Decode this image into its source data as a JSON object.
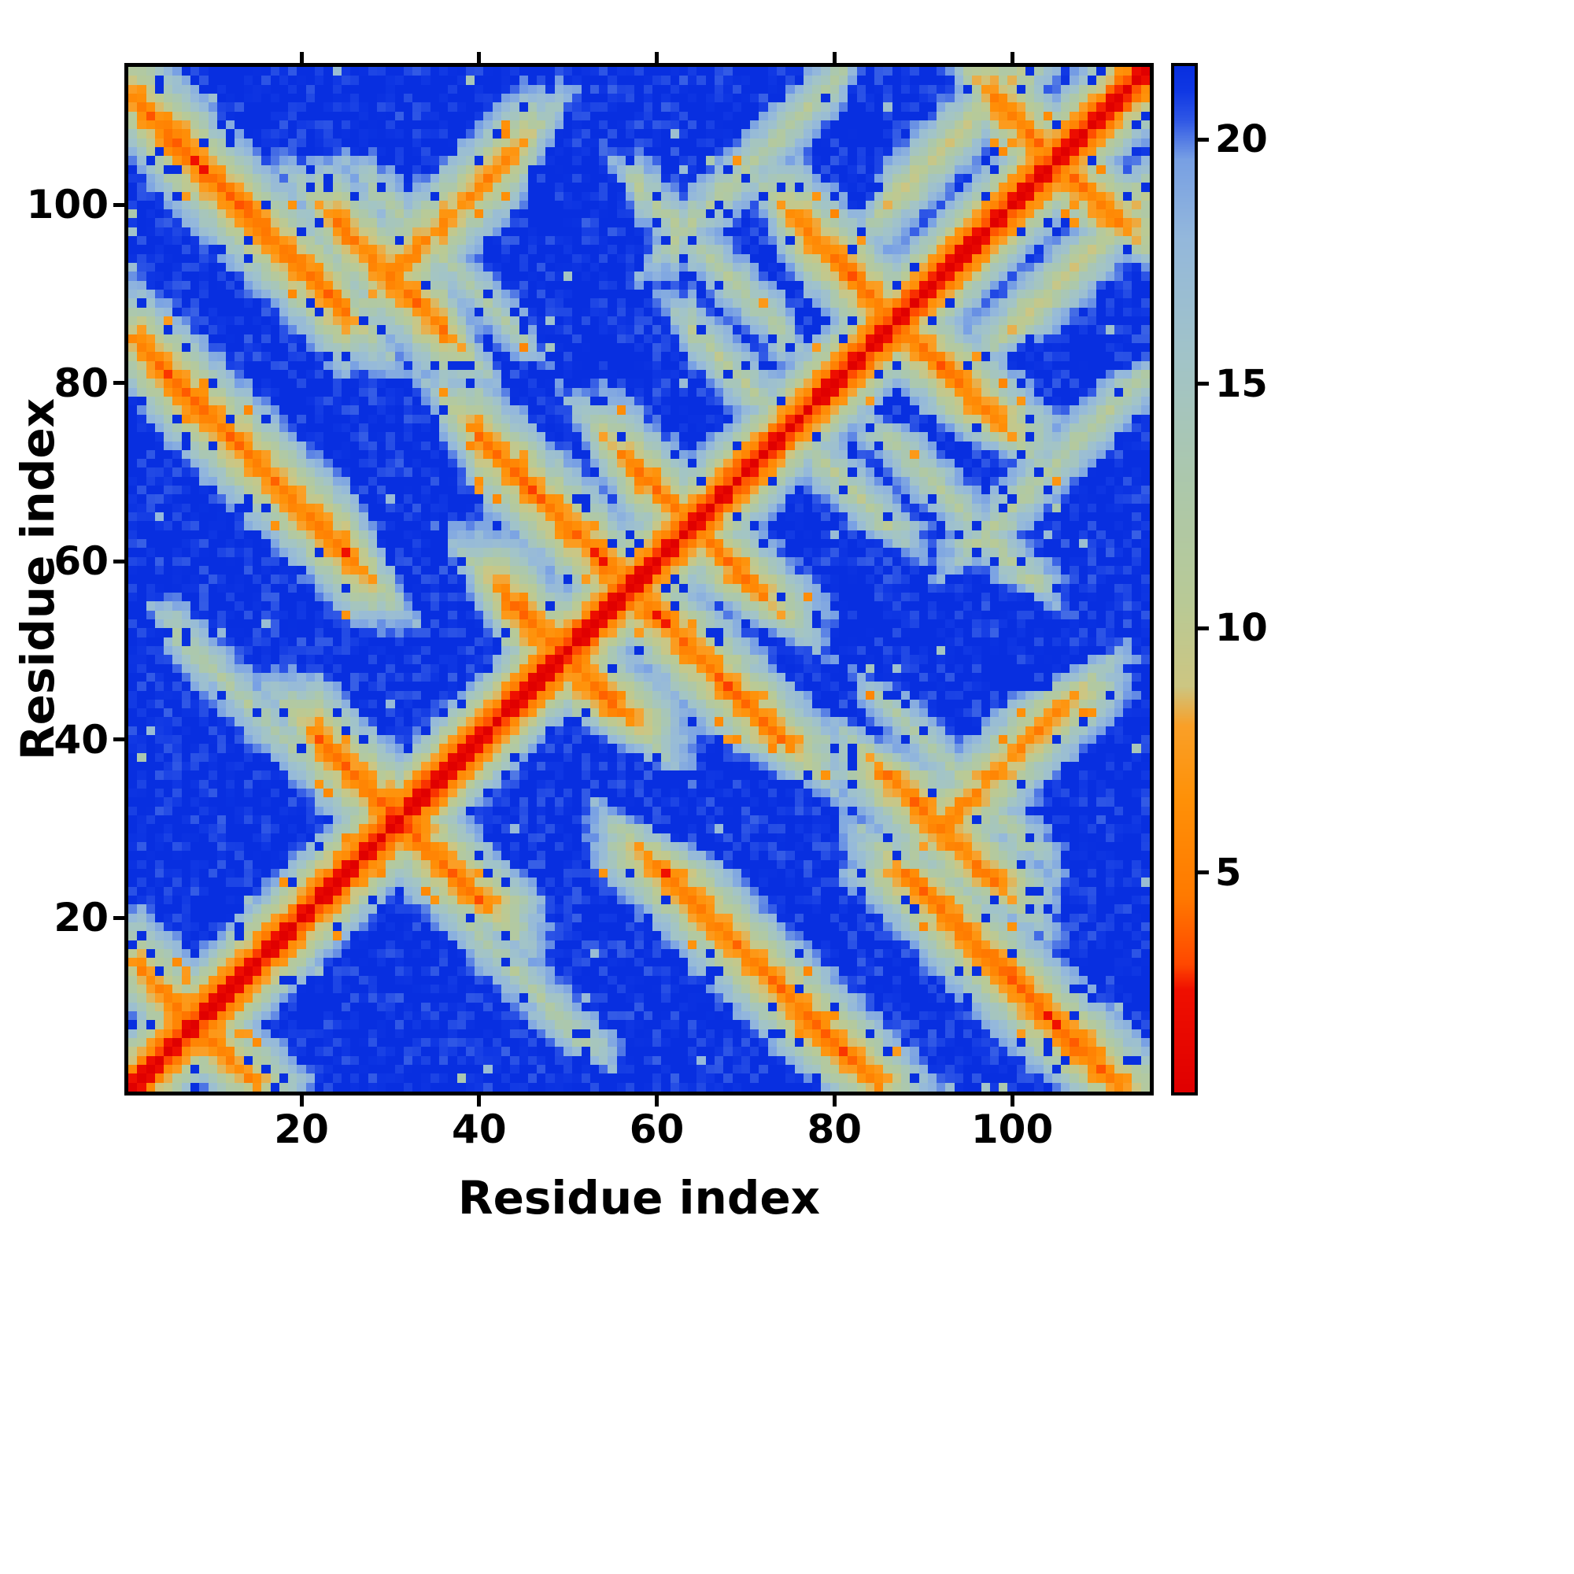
{
  "figure": {
    "background": "#ffffff"
  },
  "chart_data": {
    "type": "heatmap",
    "title": "",
    "xlabel": "Residue index",
    "ylabel": "Residue index",
    "n_residues": 115,
    "x_range": [
      1,
      115
    ],
    "y_range": [
      1,
      115
    ],
    "x_ticks": [
      20,
      40,
      60,
      80,
      100
    ],
    "y_ticks": [
      20,
      40,
      60,
      80,
      100
    ],
    "colorbar": {
      "ticks": [
        5,
        10,
        15,
        20
      ],
      "value_min": 0.5,
      "value_max": 21.5
    },
    "colormap_stops": [
      [
        0.5,
        "#e00000"
      ],
      [
        2.6,
        "#f01000"
      ],
      [
        3.1,
        "#ff4800"
      ],
      [
        4.5,
        "#ff7a00"
      ],
      [
        6.5,
        "#ff9108"
      ],
      [
        8.0,
        "#faa028"
      ],
      [
        8.8,
        "#cdc682"
      ],
      [
        10.5,
        "#b9ca96"
      ],
      [
        13.0,
        "#acc8ac"
      ],
      [
        15.5,
        "#a2c4c8"
      ],
      [
        18.0,
        "#94b8dc"
      ],
      [
        19.6,
        "#78a0e4"
      ],
      [
        20.4,
        "#3058e6"
      ],
      [
        21.0,
        "#1038e4"
      ],
      [
        21.5,
        "#082fe0"
      ]
    ],
    "diagonal_value": 0.5,
    "backbone_band_slope": 2.6,
    "contact_features": [
      {
        "dir": "ap",
        "i0": 2,
        "i1": 24,
        "c": 113,
        "dmin": 3.5
      },
      {
        "dir": "ap",
        "i0": 2,
        "i1": 26,
        "c": 86,
        "dmin": 4.0
      },
      {
        "dir": "ap",
        "i0": 40,
        "i1": 57,
        "c": 114,
        "dmin": 3.8
      },
      {
        "dir": "ap",
        "i0": 24,
        "i1": 36,
        "c": 122,
        "dmin": 4.5
      },
      {
        "dir": "ap",
        "i0": 43,
        "i1": 51,
        "c": 99,
        "dmin": 3.6
      },
      {
        "dir": "ap",
        "i0": 76,
        "i1": 92,
        "c": 174,
        "dmin": 4.2
      },
      {
        "dir": "ap",
        "i0": 22,
        "i1": 40,
        "c": 62,
        "dmin": 3.8
      },
      {
        "dir": "ap",
        "i0": 98,
        "i1": 112,
        "c": 210,
        "dmin": 4.5
      },
      {
        "dir": "ap",
        "i0": 2,
        "i1": 14,
        "c": 16,
        "dmin": 4.8
      },
      {
        "dir": "ap",
        "i0": 56,
        "i1": 66,
        "c": 128,
        "dmin": 5.0
      },
      {
        "dir": "p",
        "i0": 30,
        "i1": 44,
        "c": 62,
        "dmin": 5.0
      },
      {
        "dir": "p",
        "i0": 86,
        "i1": 104,
        "c": 14,
        "dmin": 9.0
      },
      {
        "dir": "ap",
        "i0": 64,
        "i1": 84,
        "c": 150,
        "dmin": 11.0
      },
      {
        "dir": "ap",
        "i0": 28,
        "i1": 44,
        "c": 130,
        "dmin": 12.0
      },
      {
        "dir": "ap",
        "i0": 6,
        "i1": 22,
        "c": 58,
        "dmin": 12.0
      },
      {
        "dir": "ap",
        "i0": 58,
        "i1": 74,
        "c": 160,
        "dmin": 11.5
      },
      {
        "dir": "p",
        "i0": 62,
        "i1": 80,
        "c": 34,
        "dmin": 11.0
      }
    ],
    "noise": {
      "jitter": 2.4,
      "blue_speckle_rate": 0.07,
      "orange_speckle_rate": 0.025,
      "green_speckle_rate": 0.008
    }
  }
}
